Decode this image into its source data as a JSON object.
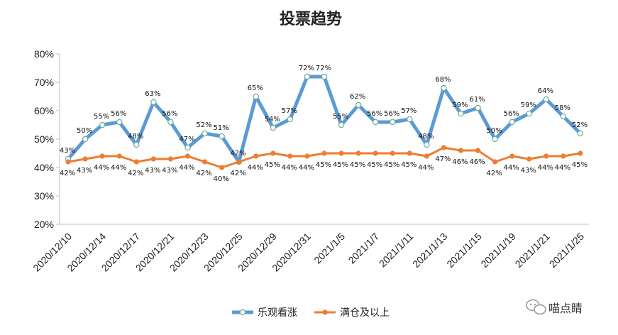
{
  "chart_data": {
    "type": "line",
    "title": "投票趋势",
    "xlabel": "",
    "ylabel": "",
    "ylim": [
      20,
      80
    ],
    "yticks": [
      "20%",
      "30%",
      "40%",
      "50%",
      "60%",
      "70%",
      "80%"
    ],
    "x_tick_labels": [
      "2020/12/10",
      "2020/12/14",
      "2020/12/17",
      "2020/12/21",
      "2020/12/23",
      "2020/12/25",
      "2020/12/29",
      "2020/12/31",
      "2021/1/5",
      "2021/1/7",
      "2021/1/11",
      "2021/1/13",
      "2021/1/15",
      "2021/1/19",
      "2021/1/21",
      "2021/1/25"
    ],
    "series": [
      {
        "name": "乐观看涨",
        "color": "#5b9bd5",
        "values": [
          43,
          50,
          55,
          56,
          48,
          63,
          56,
          47,
          52,
          51,
          42,
          65,
          54,
          57,
          72,
          72,
          55,
          62,
          56,
          56,
          57,
          48,
          68,
          59,
          61,
          50,
          56,
          59,
          64,
          58,
          52
        ]
      },
      {
        "name": "满仓及以上",
        "color": "#ed7d31",
        "values": [
          42,
          43,
          44,
          44,
          42,
          43,
          43,
          44,
          42,
          40,
          42,
          44,
          45,
          44,
          44,
          45,
          45,
          45,
          45,
          45,
          45,
          44,
          47,
          46,
          46,
          42,
          44,
          43,
          44,
          44,
          45
        ]
      }
    ],
    "legend_position": "bottom"
  },
  "watermark": "喵点睛"
}
